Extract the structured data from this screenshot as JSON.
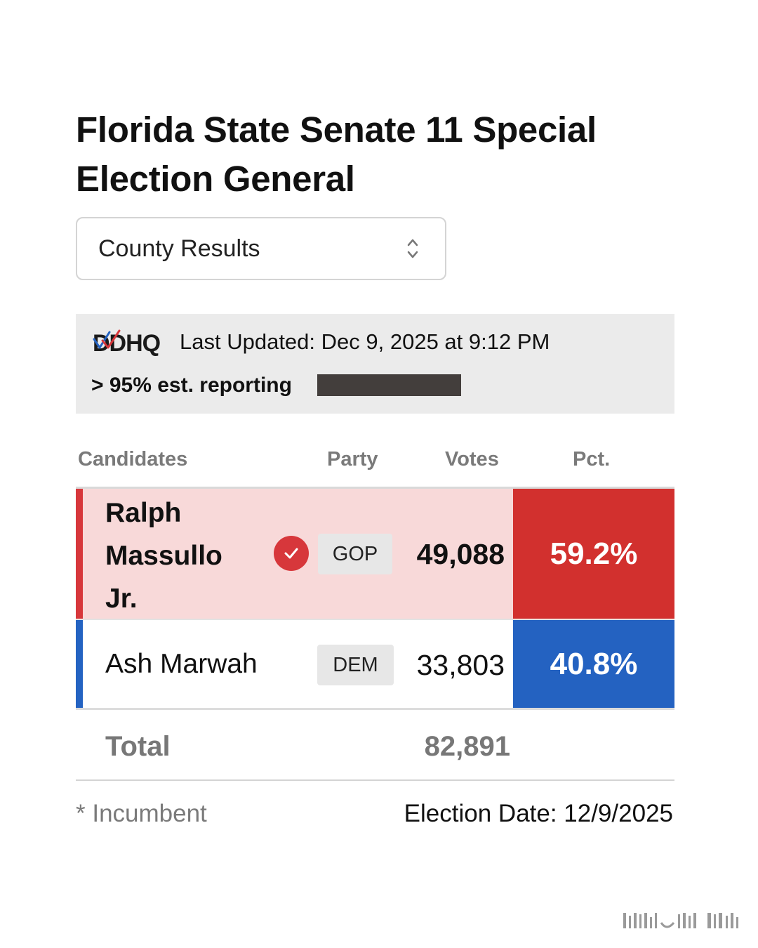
{
  "title": "Florida State Senate 11 Special Election General",
  "view_selector": {
    "selected": "County Results",
    "icon": "chevron-up-down-icon"
  },
  "status": {
    "logo_text": "DDHQ",
    "last_updated": "Last Updated: Dec 9, 2025 at 9:12 PM",
    "reporting": "> 95% est. reporting",
    "reporting_fraction": 0.95
  },
  "table": {
    "headers": {
      "candidates": "Candidates",
      "party": "Party",
      "votes": "Votes",
      "pct": "Pct."
    },
    "rows": [
      {
        "name": "Ralph Massullo Jr.",
        "winner": true,
        "party": "GOP",
        "votes": "49,088",
        "pct": "59.2%",
        "color": "#d2302e"
      },
      {
        "name": "Ash Marwah",
        "winner": false,
        "party": "DEM",
        "votes": "33,803",
        "pct": "40.8%",
        "color": "#2462c1"
      }
    ],
    "total_label": "Total",
    "total_votes": "82,891"
  },
  "footer": {
    "incumbent_note": "* Incumbent",
    "election_date": "Election Date: 12/9/2025"
  },
  "colors": {
    "gop": "#d2302e",
    "gop_row_bg": "#f8d9d9",
    "dem": "#2462c1",
    "info_bg": "#ebebeb"
  }
}
